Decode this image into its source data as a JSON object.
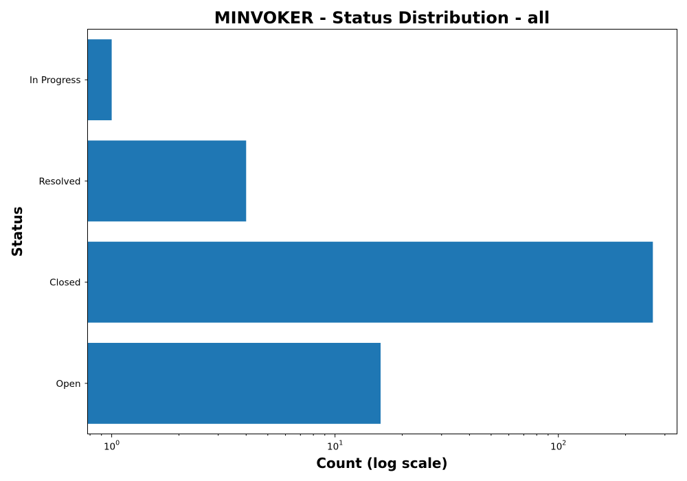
{
  "chart_data": {
    "type": "bar",
    "orientation": "horizontal",
    "title": "MINVOKER - Status Distribution - all",
    "xlabel": "Count (log scale)",
    "ylabel": "Status",
    "x_scale": "log",
    "xlim": [
      0.78,
      340
    ],
    "x_major_ticks": [
      {
        "value": 1,
        "base": "10",
        "exp": "0"
      },
      {
        "value": 10,
        "base": "10",
        "exp": "1"
      },
      {
        "value": 100,
        "base": "10",
        "exp": "2"
      }
    ],
    "categories": [
      "Open",
      "Closed",
      "Resolved",
      "In Progress"
    ],
    "values": [
      16,
      265,
      4,
      1
    ],
    "bar_color": "#1f77b4",
    "grid": false,
    "legend": "none"
  }
}
